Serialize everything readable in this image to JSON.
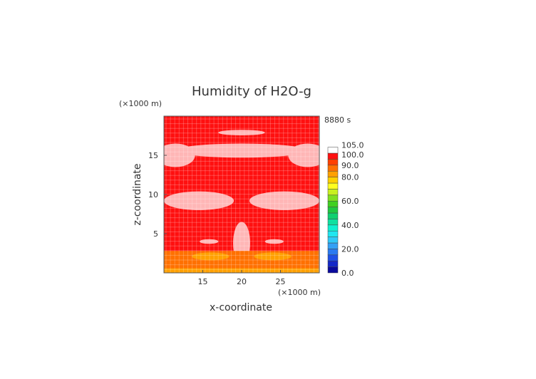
{
  "chart_data": {
    "type": "heatmap",
    "title": "Humidity of H2O-g",
    "time_label": "8880 s",
    "xlabel": "x-coordinate",
    "ylabel": "z-coordinate",
    "x_unit": "(×1000 m)",
    "y_unit": "(×1000 m)",
    "xlim": [
      10,
      30
    ],
    "ylim": [
      0,
      20
    ],
    "x_ticks": [
      15,
      20,
      25
    ],
    "y_ticks": [
      5,
      10,
      15
    ],
    "colorbar": {
      "range": [
        0,
        105
      ],
      "labels": [
        "0.0",
        "20.0",
        "40.0",
        "60.0",
        "80.0",
        "90.0",
        "100.0",
        "105.0"
      ],
      "levels": [
        0,
        5,
        10,
        15,
        20,
        25,
        30,
        35,
        40,
        45,
        50,
        55,
        60,
        65,
        70,
        75,
        80,
        85,
        90,
        95,
        100,
        105
      ],
      "colors": [
        "#0a0a9c",
        "#1428c8",
        "#1e50e6",
        "#2a7af0",
        "#34a0f5",
        "#30c8f8",
        "#20e6f0",
        "#10f0d0",
        "#10e0a0",
        "#10d070",
        "#20c840",
        "#40d020",
        "#80e020",
        "#c8f020",
        "#ffff20",
        "#ffd000",
        "#ffa000",
        "#ff7000",
        "#ff4000",
        "#ff1010",
        "#ffffff"
      ]
    },
    "field": {
      "background_value": 98,
      "regions": [
        {
          "kind": "ellipse",
          "cx": 20,
          "cy": 17.9,
          "rx": 3.0,
          "ry": 0.35,
          "value": 102
        },
        {
          "kind": "ellipse",
          "cx": 20,
          "cy": 15.6,
          "rx": 8.5,
          "ry": 0.9,
          "value": 102
        },
        {
          "kind": "ellipse",
          "cx": 11.5,
          "cy": 15.0,
          "rx": 2.5,
          "ry": 1.5,
          "value": 102
        },
        {
          "kind": "ellipse",
          "cx": 28.5,
          "cy": 15.0,
          "rx": 2.5,
          "ry": 1.5,
          "value": 102
        },
        {
          "kind": "ellipse",
          "cx": 14.5,
          "cy": 9.2,
          "rx": 4.5,
          "ry": 1.2,
          "value": 102
        },
        {
          "kind": "ellipse",
          "cx": 25.5,
          "cy": 9.2,
          "rx": 4.5,
          "ry": 1.2,
          "value": 102
        },
        {
          "kind": "ellipse",
          "cx": 20,
          "cy": 3.8,
          "rx": 1.1,
          "ry": 2.7,
          "value": 102
        },
        {
          "kind": "ellipse",
          "cx": 15.8,
          "cy": 4.0,
          "rx": 1.2,
          "ry": 0.3,
          "value": 102
        },
        {
          "kind": "ellipse",
          "cx": 24.2,
          "cy": 4.0,
          "rx": 1.2,
          "ry": 0.3,
          "value": 102
        },
        {
          "kind": "band",
          "y0": 0.0,
          "y1": 0.6,
          "value": 80
        },
        {
          "kind": "band",
          "y0": 0.6,
          "y1": 2.8,
          "value": 88
        },
        {
          "kind": "ellipse",
          "cx": 16.0,
          "cy": 2.1,
          "rx": 2.4,
          "ry": 0.5,
          "value": 82
        },
        {
          "kind": "ellipse",
          "cx": 24.0,
          "cy": 2.1,
          "rx": 2.4,
          "ry": 0.5,
          "value": 82
        }
      ]
    }
  }
}
